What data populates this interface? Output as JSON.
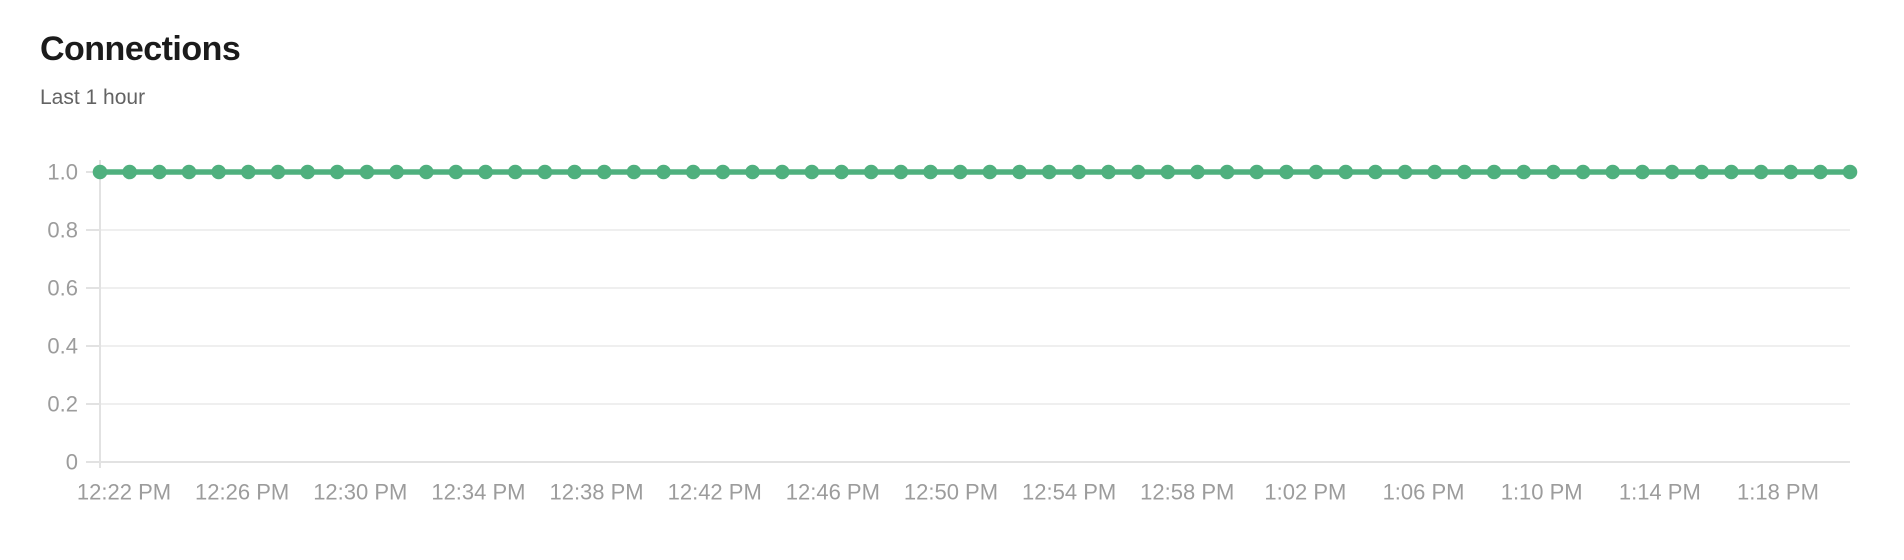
{
  "header": {
    "title": "Connections",
    "subtitle": "Last 1 hour"
  },
  "colors": {
    "line": "#4fb07e",
    "grid": "#efefef",
    "axis": "#e2e2e2",
    "tick_label": "#9c9c9c",
    "title": "#1b1b1b",
    "subtitle": "#636363",
    "background": "#ffffff"
  },
  "chart_data": {
    "type": "line",
    "title": "Connections",
    "subtitle": "Last 1 hour",
    "series_name": "connections",
    "marker": "circle",
    "grid": true,
    "legend": false,
    "ylim": [
      0,
      1.0
    ],
    "y_ticks": [
      1.0,
      0.8,
      0.6,
      0.4,
      0.2,
      0
    ],
    "y_tick_labels": [
      "1.0",
      "0.8",
      "0.6",
      "0.4",
      "0.2",
      "0"
    ],
    "x_tick_labels": [
      "12:22 PM",
      "12:26 PM",
      "12:30 PM",
      "12:34 PM",
      "12:38 PM",
      "12:42 PM",
      "12:46 PM",
      "12:50 PM",
      "12:54 PM",
      "12:58 PM",
      "1:02 PM",
      "1:06 PM",
      "1:10 PM",
      "1:14 PM",
      "1:18 PM"
    ],
    "minutes_per_x_tick": 4,
    "num_points": 60,
    "values": [
      1.0,
      1.0,
      1.0,
      1.0,
      1.0,
      1.0,
      1.0,
      1.0,
      1.0,
      1.0,
      1.0,
      1.0,
      1.0,
      1.0,
      1.0,
      1.0,
      1.0,
      1.0,
      1.0,
      1.0,
      1.0,
      1.0,
      1.0,
      1.0,
      1.0,
      1.0,
      1.0,
      1.0,
      1.0,
      1.0,
      1.0,
      1.0,
      1.0,
      1.0,
      1.0,
      1.0,
      1.0,
      1.0,
      1.0,
      1.0,
      1.0,
      1.0,
      1.0,
      1.0,
      1.0,
      1.0,
      1.0,
      1.0,
      1.0,
      1.0,
      1.0,
      1.0,
      1.0,
      1.0,
      1.0,
      1.0,
      1.0,
      1.0,
      1.0,
      1.0
    ]
  }
}
